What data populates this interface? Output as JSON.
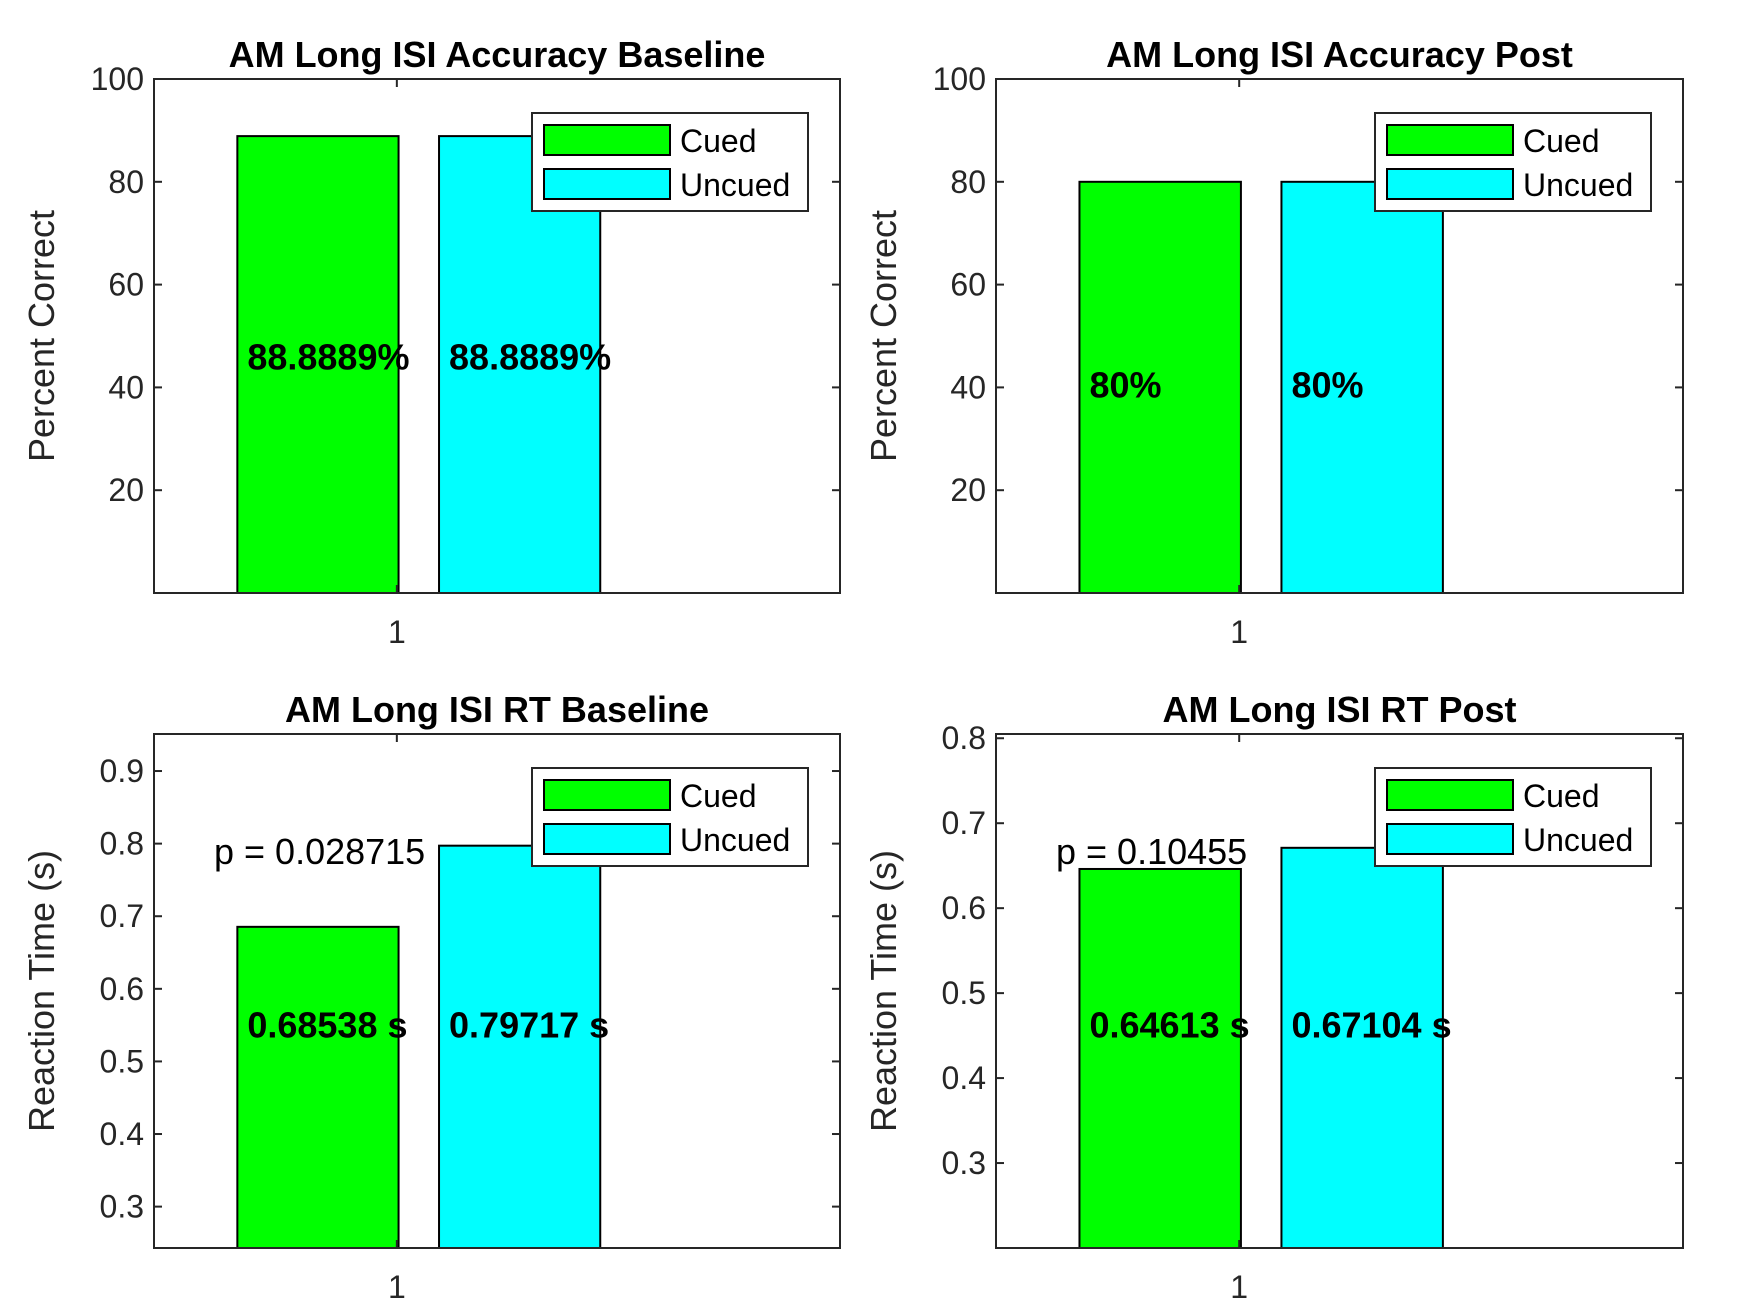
{
  "chart_data": [
    {
      "type": "bar",
      "title": "AM Long ISI Accuracy Baseline",
      "ylabel": "Percent Correct",
      "xlabel": "",
      "ylim": [
        0,
        100
      ],
      "yticks": [
        "20",
        "40",
        "60",
        "80",
        "100"
      ],
      "categories": [
        "1"
      ],
      "series": [
        {
          "name": "Cued",
          "color": "#00ff00",
          "values": [
            88.8889
          ],
          "label": "88.8889%"
        },
        {
          "name": "Uncued",
          "color": "#00ffff",
          "values": [
            88.8889
          ],
          "label": "88.8889%"
        }
      ],
      "annotation": "",
      "legend": "top-right",
      "grid": false
    },
    {
      "type": "bar",
      "title": "AM Long ISI Accuracy Post",
      "ylabel": "Percent Correct",
      "xlabel": "",
      "ylim": [
        0,
        100
      ],
      "yticks": [
        "20",
        "40",
        "60",
        "80",
        "100"
      ],
      "categories": [
        "1"
      ],
      "series": [
        {
          "name": "Cued",
          "color": "#00ff00",
          "values": [
            80
          ],
          "label": "80%"
        },
        {
          "name": "Uncued",
          "color": "#00ffff",
          "values": [
            80
          ],
          "label": "80%"
        }
      ],
      "annotation": "",
      "legend": "top-right",
      "grid": false
    },
    {
      "type": "bar",
      "title": "AM Long ISI RT Baseline",
      "ylabel": "Reaction Time (s)",
      "xlabel": "",
      "ylim": [
        0.243,
        0.951
      ],
      "yticks": [
        "0.3",
        "0.4",
        "0.5",
        "0.6",
        "0.7",
        "0.8",
        "0.9"
      ],
      "categories": [
        "1"
      ],
      "series": [
        {
          "name": "Cued",
          "color": "#00ff00",
          "values": [
            0.68538
          ],
          "label": "0.68538 s"
        },
        {
          "name": "Uncued",
          "color": "#00ffff",
          "values": [
            0.79717
          ],
          "label": "0.79717 s"
        }
      ],
      "annotation": "p = 0.028715",
      "legend": "top-right",
      "grid": false
    },
    {
      "type": "bar",
      "title": "AM Long ISI RT Post",
      "ylabel": "Reaction Time (s)",
      "xlabel": "",
      "ylim": [
        0.2,
        0.805
      ],
      "yticks": [
        "0.3",
        "0.4",
        "0.5",
        "0.6",
        "0.7",
        "0.8"
      ],
      "categories": [
        "1"
      ],
      "series": [
        {
          "name": "Cued",
          "color": "#00ff00",
          "values": [
            0.64613
          ],
          "label": "0.64613 s"
        },
        {
          "name": "Uncued",
          "color": "#00ffff",
          "values": [
            0.67104
          ],
          "label": "0.67104 s"
        }
      ],
      "annotation": "p = 0.10455",
      "legend": "top-right",
      "grid": false
    }
  ]
}
